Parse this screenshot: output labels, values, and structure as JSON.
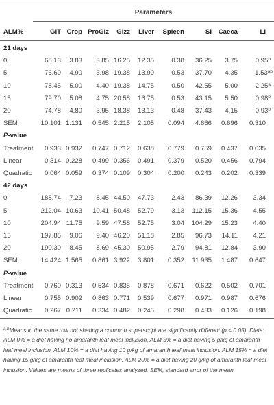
{
  "table": {
    "group_header": "Parameters",
    "columns": [
      "ALM%",
      "GIT",
      "Crop",
      "ProGiz",
      "Gizz",
      "Liver",
      "Spleen",
      "SI",
      "Caeca",
      "LI"
    ],
    "rows": [
      {
        "kind": "section",
        "label": "21 days"
      },
      {
        "kind": "data",
        "cells": [
          "0",
          "68.13",
          "3.83",
          "3.85",
          "16.25",
          "12.35",
          "0.38",
          "36.25",
          "3.75",
          "0.95"
        ],
        "sup": "b"
      },
      {
        "kind": "data",
        "cells": [
          "5",
          "76.60",
          "4.90",
          "3.98",
          "19.38",
          "13.90",
          "0.53",
          "37.70",
          "4.35",
          "1.53"
        ],
        "sup": "ab"
      },
      {
        "kind": "data",
        "cells": [
          "10",
          "78.45",
          "5.00",
          "4.40",
          "19.38",
          "14.75",
          "0.50",
          "42.55",
          "5.00",
          "2.25"
        ],
        "sup": "a"
      },
      {
        "kind": "data",
        "cells": [
          "15",
          "79.70",
          "5.08",
          "4.75",
          "20.58",
          "16.75",
          "0.53",
          "43.15",
          "5.50",
          "0.98"
        ],
        "sup": "b"
      },
      {
        "kind": "data",
        "cells": [
          "20",
          "74.78",
          "4.80",
          "3.95",
          "18.38",
          "13.13",
          "0.48",
          "37.43",
          "4.15",
          "0.93"
        ],
        "sup": "b"
      },
      {
        "kind": "data",
        "cells": [
          "SEM",
          "10.101",
          "1.131",
          "0.545",
          "2.215",
          "2.105",
          "0.094",
          "4.666",
          "0.696",
          "0.310"
        ]
      },
      {
        "kind": "section",
        "label": "P-value",
        "italic_char": "P",
        "rest": "-value"
      },
      {
        "kind": "data",
        "cells": [
          "Treatment",
          "0.933",
          "0.932",
          "0.747",
          "0.712",
          "0.638",
          "0.779",
          "0.759",
          "0.437",
          "0.035"
        ]
      },
      {
        "kind": "data",
        "cells": [
          "Linear",
          "0.314",
          "0.228",
          "0.499",
          "0.356",
          "0.491",
          "0.379",
          "0.520",
          "0.456",
          "0.794"
        ]
      },
      {
        "kind": "data",
        "cells": [
          "Quadratic",
          "0.064",
          "0.059",
          "0.374",
          "0.109",
          "0.304",
          "0.200",
          "0.243",
          "0.202",
          "0.339"
        ]
      },
      {
        "kind": "section",
        "label": "42 days"
      },
      {
        "kind": "data",
        "cells": [
          "0",
          "188.74",
          "7.23",
          "8.45",
          "44.50",
          "47.73",
          "2.43",
          "86.39",
          "12.26",
          "3.34"
        ]
      },
      {
        "kind": "data",
        "cells": [
          "5",
          "212.04",
          "10.63",
          "10.41",
          "50.48",
          "52.79",
          "3.13",
          "112.15",
          "15.36",
          "4.55"
        ]
      },
      {
        "kind": "data",
        "cells": [
          "10",
          "204.94",
          "11.75",
          "9.59",
          "47.58",
          "52.75",
          "3.04",
          "104.29",
          "15.23",
          "4.40"
        ]
      },
      {
        "kind": "data",
        "cells": [
          "15",
          "197.85",
          "9.06",
          "9.40",
          "46.20",
          "51.18",
          "2.85",
          "96.73",
          "14.11",
          "4.21"
        ]
      },
      {
        "kind": "data",
        "cells": [
          "20",
          "190.30",
          "8.45",
          "8.69",
          "45.30",
          "50.95",
          "2.79",
          "94.81",
          "12.84",
          "3.90"
        ]
      },
      {
        "kind": "data",
        "cells": [
          "SEM",
          "14.424",
          "1.565",
          "0.861",
          "3.922",
          "3.801",
          "0.352",
          "11.935",
          "1.487",
          "0.647"
        ]
      },
      {
        "kind": "section",
        "label": "P-value",
        "italic_char": "P",
        "rest": "-value"
      },
      {
        "kind": "data",
        "cells": [
          "Treatment",
          "0.760",
          "0.313",
          "0.534",
          "0.835",
          "0.878",
          "0.671",
          "0.622",
          "0.502",
          "0.701"
        ]
      },
      {
        "kind": "data",
        "cells": [
          "Linear",
          "0.755",
          "0.902",
          "0.863",
          "0.771",
          "0.539",
          "0.677",
          "0.971",
          "0.987",
          "0.676"
        ]
      },
      {
        "kind": "data",
        "cells": [
          "Quadratic",
          "0.267",
          "0.211",
          "0.334",
          "0.482",
          "0.245",
          "0.298",
          "0.433",
          "0.126",
          "0.198"
        ]
      }
    ]
  },
  "footnote": {
    "sup": "a,b",
    "text": "Means in the same row not sharing a common superscript are significantly different (p < 0.05). Diets: ALM 0% = a diet having no amaranth leaf meal inclusion, ALM 5% = a diet having 5 g/kg of amaranth leaf meal inclusion, ALM 10% = a diet having 10 g/kg of amaranth leaf meal inclusion. ALM 15% = a diet having 15 g/kg of amaranth leaf meal inclusion. ALM 20% = a diet having 20 g/kg of amaranth leaf meal inclusion. Values are means of three replicates analyzed. SEM, standard error of the mean."
  }
}
